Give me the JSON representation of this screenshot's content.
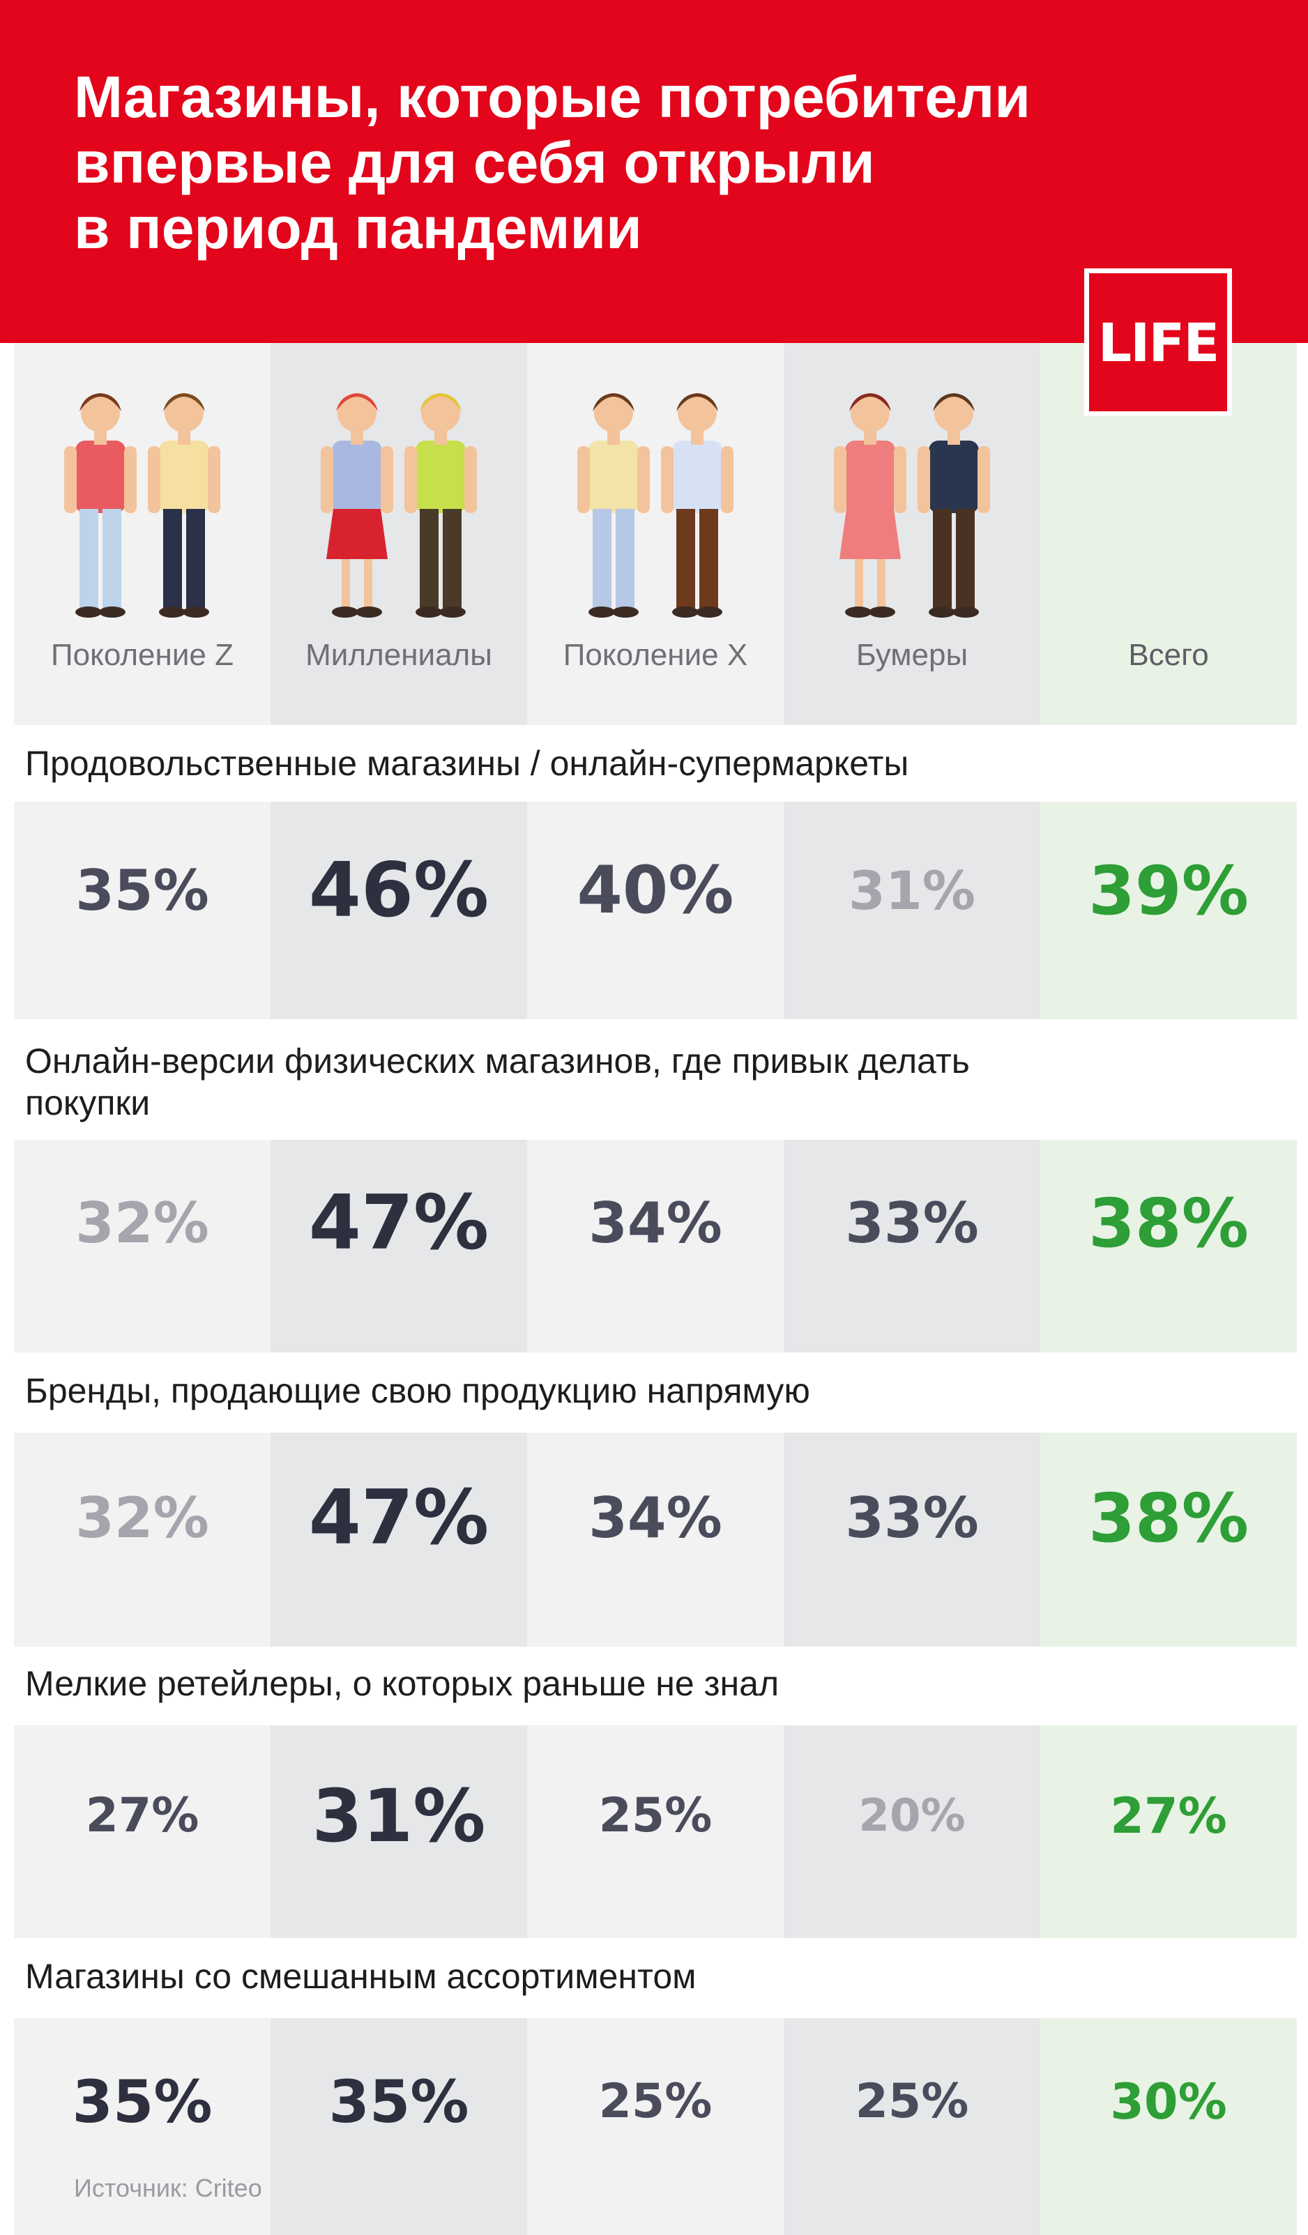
{
  "title_lines": [
    "Магазины, которые потребители",
    "впервые для себя открыли",
    "в период пандемии"
  ],
  "logo": "LIFE",
  "source": "Источник: Criteo",
  "colors": {
    "brand_red": "#e3051b",
    "total_green": "#2e9e36",
    "total_bg": "#e8f3e5",
    "col_light": "#f2f2f2",
    "col_dark": "#e6e7e9",
    "value_dark": "#2e3040",
    "value_mid": "#4a4c5c",
    "value_light": "#a4a5ad"
  },
  "icons": [
    "people-gen-z-icon",
    "people-millennials-icon",
    "people-gen-x-icon",
    "people-boomers-icon"
  ],
  "chart_data": {
    "type": "table",
    "columns": [
      "Поколение Z",
      "Миллениалы",
      "Поколение X",
      "Бумеры",
      "Всего"
    ],
    "rows": [
      {
        "label": "Продовольственные магазины / онлайн-супермаркеты",
        "values": [
          "35%",
          "46%",
          "40%",
          "31%",
          "39%"
        ]
      },
      {
        "label": "Онлайн-версии физических магазинов, где привык делать покупки",
        "values": [
          "32%",
          "47%",
          "34%",
          "33%",
          "38%"
        ]
      },
      {
        "label": "Бренды, продающие свою продукцию напрямую",
        "values": [
          "32%",
          "47%",
          "34%",
          "33%",
          "38%"
        ]
      },
      {
        "label": "Мелкие ретейлеры, о которых раньше не знал",
        "values": [
          "27%",
          "31%",
          "25%",
          "20%",
          "27%"
        ]
      },
      {
        "label": "Магазины со смешанным ассортиментом",
        "values": [
          "35%",
          "35%",
          "25%",
          "25%",
          "30%"
        ]
      }
    ]
  }
}
